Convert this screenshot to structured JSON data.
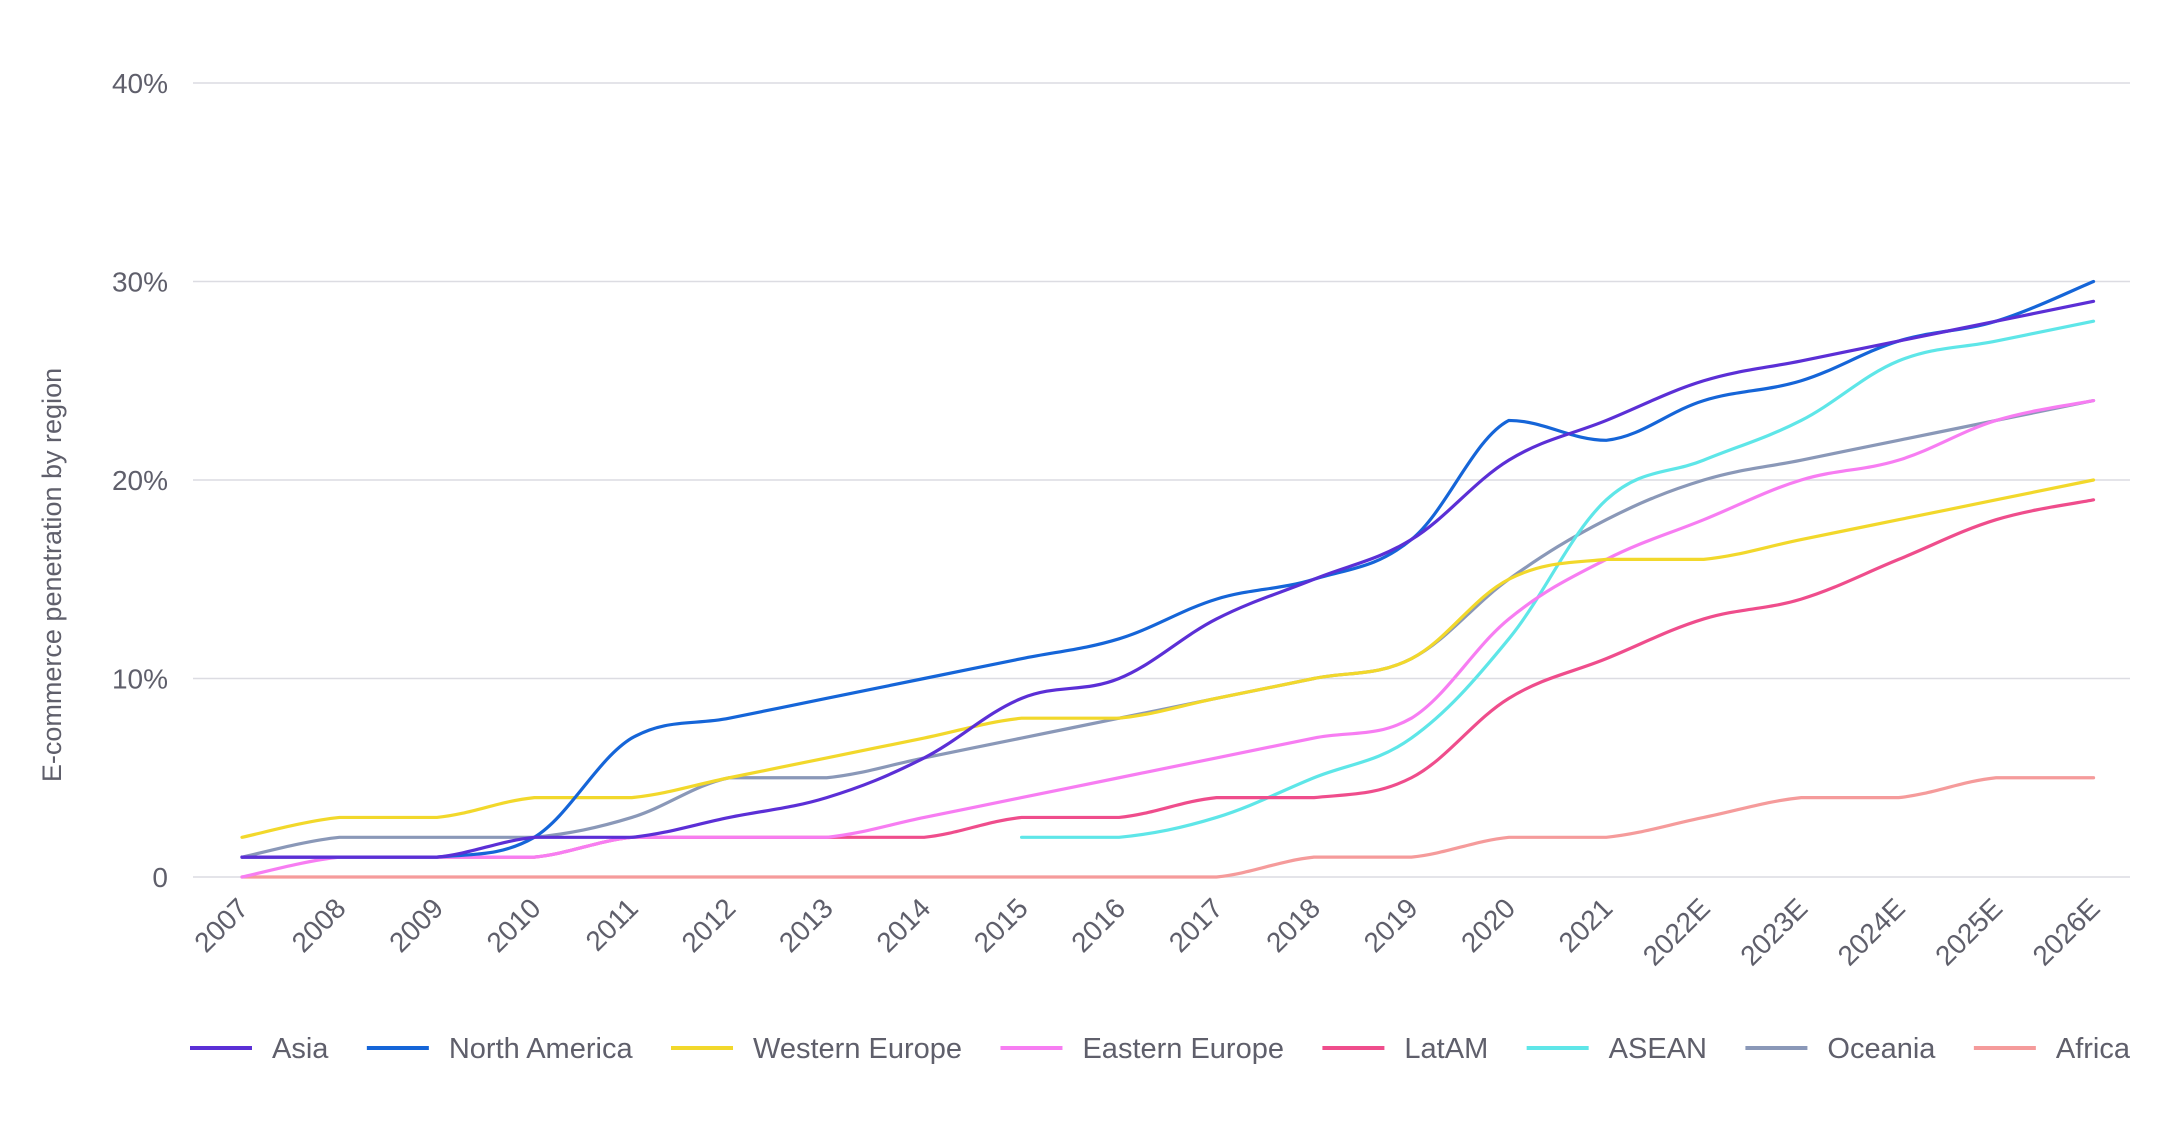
{
  "chart_data": {
    "type": "line",
    "title": "",
    "xlabel": "",
    "ylabel": "E-commerce penetration by region",
    "ylim": [
      0,
      40
    ],
    "y_ticks": [
      "0",
      "10%",
      "20%",
      "30%",
      "40%"
    ],
    "grid": true,
    "legend_position": "bottom",
    "categories": [
      "2007",
      "2008",
      "2009",
      "2010",
      "2011",
      "2012",
      "2013",
      "2014",
      "2015",
      "2016",
      "2017",
      "2018",
      "2019",
      "2020",
      "2021",
      "2022E",
      "2023E",
      "2024E",
      "2025E",
      "2026E"
    ],
    "series": [
      {
        "name": "Asia",
        "color": "#5b2fd6",
        "values": [
          1,
          1,
          1,
          2,
          2,
          3,
          4,
          6,
          9,
          10,
          13,
          15,
          17,
          21,
          23,
          25,
          26,
          27,
          28,
          29
        ]
      },
      {
        "name": "North America",
        "color": "#1565d8",
        "values": [
          1,
          1,
          1,
          2,
          7,
          8,
          9,
          10,
          11,
          12,
          14,
          15,
          17,
          23,
          22,
          24,
          25,
          27,
          28,
          30
        ]
      },
      {
        "name": "Western Europe",
        "color": "#f2d82b",
        "values": [
          2,
          3,
          3,
          4,
          4,
          5,
          6,
          7,
          8,
          8,
          9,
          10,
          11,
          15,
          16,
          16,
          17,
          18,
          19,
          20
        ]
      },
      {
        "name": "Eastern Europe",
        "color": "#f77df2",
        "values": [
          0,
          1,
          1,
          1,
          2,
          2,
          2,
          3,
          4,
          5,
          6,
          7,
          8,
          13,
          16,
          18,
          20,
          21,
          23,
          24
        ]
      },
      {
        "name": "LatAM",
        "color": "#ef4d8c",
        "values": [
          1,
          1,
          1,
          1,
          2,
          2,
          2,
          2,
          3,
          3,
          4,
          4,
          5,
          9,
          11,
          13,
          14,
          16,
          18,
          19
        ]
      },
      {
        "name": "ASEAN",
        "color": "#5ee6e8",
        "values": [
          null,
          null,
          null,
          null,
          null,
          null,
          null,
          null,
          2,
          2,
          3,
          5,
          7,
          12,
          19,
          21,
          23,
          26,
          27,
          28
        ]
      },
      {
        "name": "Oceania",
        "color": "#8a98b8",
        "values": [
          1,
          2,
          2,
          2,
          3,
          5,
          5,
          6,
          7,
          8,
          9,
          10,
          11,
          15,
          18,
          20,
          21,
          22,
          23,
          24
        ]
      },
      {
        "name": "Africa",
        "color": "#f59b9b",
        "values": [
          0,
          0,
          0,
          0,
          0,
          0,
          0,
          0,
          0,
          0,
          0,
          1,
          1,
          2,
          2,
          3,
          4,
          4,
          5,
          5
        ]
      }
    ]
  }
}
